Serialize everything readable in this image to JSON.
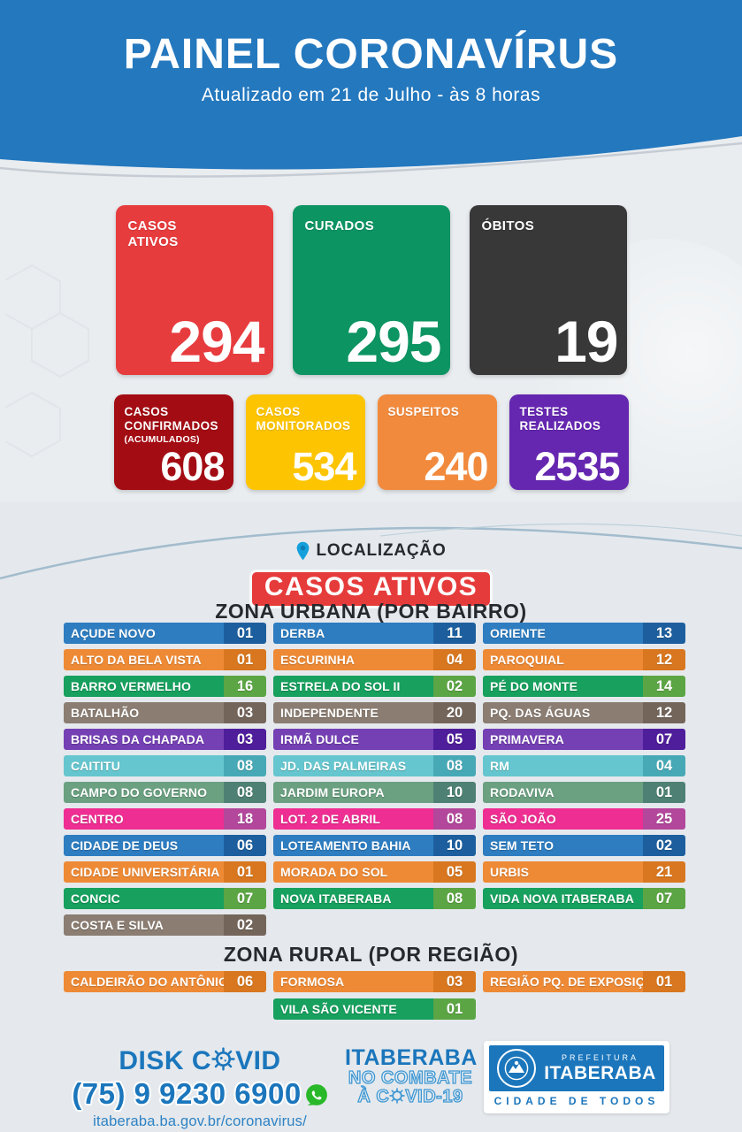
{
  "header": {
    "title": "PAINEL CORONAVÍRUS",
    "subtitle": "Atualizado em 21 de Julho - às 8 horas",
    "banner_color": "#2478be"
  },
  "cards": {
    "row1": [
      {
        "id": "casos-ativos",
        "label_lines": [
          "CASOS",
          "ATIVOS"
        ],
        "value": "294",
        "bg": "#e73c3e"
      },
      {
        "id": "curados",
        "label_lines": [
          "CURADOS"
        ],
        "value": "295",
        "bg": "#0c9462"
      },
      {
        "id": "obitos",
        "label_lines": [
          "ÓBITOS"
        ],
        "value": "19",
        "bg": "#383838"
      }
    ],
    "row2": [
      {
        "id": "casos-confirmados",
        "label_lines": [
          "CASOS",
          "CONFIRMADOS"
        ],
        "sublabel": "(ACUMULADOS)",
        "value": "608",
        "bg": "#a30c13"
      },
      {
        "id": "casos-monitorados",
        "label_lines": [
          "CASOS",
          "MONITORADOS"
        ],
        "value": "534",
        "bg": "#fdc402"
      },
      {
        "id": "suspeitos",
        "label_lines": [
          "SUSPEITOS"
        ],
        "value": "240",
        "bg": "#f18a3d"
      },
      {
        "id": "testes-realizados",
        "label_lines": [
          "TESTES",
          "REALIZADOS"
        ],
        "value": "2535",
        "bg": "#6527b0"
      }
    ]
  },
  "location": {
    "label": "LOCALIZAÇÃO",
    "badge": "CASOS ATIVOS",
    "badge_bg": "#e63b3b",
    "urban_title": "ZONA URBANA (POR BAIRRO)",
    "rural_title": "ZONA RURAL (POR REGIÃO)"
  },
  "row_themes": {
    "blue": {
      "bar": "#2e7dc1",
      "num": "#1d5f9e"
    },
    "orange": {
      "bar": "#ee8a35",
      "num": "#d8771f"
    },
    "green": {
      "bar": "#17a05e",
      "num": "#5ca544"
    },
    "taupe": {
      "bar": "#8b7d72",
      "num": "#74655a"
    },
    "purple": {
      "bar": "#7440b4",
      "num": "#4f1e9b"
    },
    "teal": {
      "bar": "#66c6cf",
      "num": "#47a9b6"
    },
    "sage": {
      "bar": "#6ba081",
      "num": "#4e8173"
    },
    "pink": {
      "bar": "#ee2e92",
      "num": "#b2479b"
    }
  },
  "urban_columns": [
    [
      {
        "name": "AÇUDE NOVO",
        "value": "01",
        "theme": "blue"
      },
      {
        "name": "ALTO DA BELA VISTA",
        "value": "01",
        "theme": "orange"
      },
      {
        "name": "BARRO VERMELHO",
        "value": "16",
        "theme": "green"
      },
      {
        "name": "BATALHÃO",
        "value": "03",
        "theme": "taupe"
      },
      {
        "name": "BRISAS DA CHAPADA",
        "value": "03",
        "theme": "purple"
      },
      {
        "name": "CAITITU",
        "value": "08",
        "theme": "teal"
      },
      {
        "name": "CAMPO DO GOVERNO",
        "value": "08",
        "theme": "sage"
      },
      {
        "name": "CENTRO",
        "value": "18",
        "theme": "pink"
      },
      {
        "name": "CIDADE DE DEUS",
        "value": "06",
        "theme": "blue"
      },
      {
        "name": "CIDADE UNIVERSITÁRIA",
        "value": "01",
        "theme": "orange"
      },
      {
        "name": "CONCIC",
        "value": "07",
        "theme": "green"
      },
      {
        "name": "COSTA E SILVA",
        "value": "02",
        "theme": "taupe"
      }
    ],
    [
      {
        "name": "DERBA",
        "value": "11",
        "theme": "blue"
      },
      {
        "name": "ESCURINHA",
        "value": "04",
        "theme": "orange"
      },
      {
        "name": "ESTRELA DO SOL II",
        "value": "02",
        "theme": "green"
      },
      {
        "name": "INDEPENDENTE",
        "value": "20",
        "theme": "taupe"
      },
      {
        "name": "IRMÃ DULCE",
        "value": "05",
        "theme": "purple"
      },
      {
        "name": "JD. DAS PALMEIRAS",
        "value": "08",
        "theme": "teal"
      },
      {
        "name": "JARDIM EUROPA",
        "value": "10",
        "theme": "sage"
      },
      {
        "name": "LOT. 2 DE ABRIL",
        "value": "08",
        "theme": "pink"
      },
      {
        "name": "LOTEAMENTO BAHIA",
        "value": "10",
        "theme": "blue"
      },
      {
        "name": "MORADA DO SOL",
        "value": "05",
        "theme": "orange"
      },
      {
        "name": "NOVA ITABERABA",
        "value": "08",
        "theme": "green"
      }
    ],
    [
      {
        "name": "ORIENTE",
        "value": "13",
        "theme": "blue"
      },
      {
        "name": "PAROQUIAL",
        "value": "12",
        "theme": "orange"
      },
      {
        "name": "PÉ DO MONTE",
        "value": "14",
        "theme": "green"
      },
      {
        "name": "PQ. DAS ÁGUAS",
        "value": "12",
        "theme": "taupe"
      },
      {
        "name": "PRIMAVERA",
        "value": "07",
        "theme": "purple"
      },
      {
        "name": "RM",
        "value": "04",
        "theme": "teal"
      },
      {
        "name": "RODAVIVA",
        "value": "01",
        "theme": "sage"
      },
      {
        "name": "SÃO JOÃO",
        "value": "25",
        "theme": "pink"
      },
      {
        "name": "SEM TETO",
        "value": "02",
        "theme": "blue"
      },
      {
        "name": "URBIS",
        "value": "21",
        "theme": "orange"
      },
      {
        "name": "VIDA NOVA ITABERABA",
        "value": "07",
        "theme": "green"
      }
    ]
  ],
  "rural": {
    "row1": [
      {
        "name": "CALDEIRÃO DO ANTÔNIO",
        "value": "06",
        "theme": "orange"
      },
      {
        "name": "FORMOSA",
        "value": "03",
        "theme": "orange"
      },
      {
        "name": "REGIÃO PQ. DE EXPOSIÇÃO",
        "value": "01",
        "theme": "orange"
      }
    ],
    "row2": [
      {
        "name": "VILA SÃO VICENTE",
        "value": "01",
        "theme": "green",
        "column": 2
      }
    ]
  },
  "footer": {
    "disk": {
      "pre": "DISK C",
      "post": "VID",
      "phone": "(75) 9 9230 6900",
      "url": "itaberaba.ba.gov.br/coronavirus/"
    },
    "campaign": {
      "line1": "ITABERABA",
      "line2": "NO COMBATE",
      "line3_pre": "À C",
      "line3_post": "VID-19"
    },
    "logo": {
      "top": "PREFEITURA",
      "name": "ITABERABA",
      "bottom": "CIDADE DE TODOS"
    },
    "accent_blue": "#1b76bc",
    "whatsapp_green": "#29b829"
  },
  "chart_data": [
    {
      "type": "bar",
      "title": "PAINEL CORONAVÍRUS - Atualizado em 21 de Julho - às 8 horas",
      "categories": [
        "CASOS ATIVOS",
        "CURADOS",
        "ÓBITOS",
        "CASOS CONFIRMADOS (ACUMULADOS)",
        "CASOS MONITORADOS",
        "SUSPEITOS",
        "TESTES REALIZADOS"
      ],
      "values": [
        294,
        295,
        19,
        608,
        534,
        240,
        2535
      ]
    },
    {
      "type": "table",
      "title": "CASOS ATIVOS - ZONA URBANA (POR BAIRRO)",
      "categories": [
        "AÇUDE NOVO",
        "ALTO DA BELA VISTA",
        "BARRO VERMELHO",
        "BATALHÃO",
        "BRISAS DA CHAPADA",
        "CAITITU",
        "CAMPO DO GOVERNO",
        "CENTRO",
        "CIDADE DE DEUS",
        "CIDADE UNIVERSITÁRIA",
        "CONCIC",
        "COSTA E SILVA",
        "DERBA",
        "ESCURINHA",
        "ESTRELA DO SOL II",
        "INDEPENDENTE",
        "IRMÃ DULCE",
        "JD. DAS PALMEIRAS",
        "JARDIM EUROPA",
        "LOT. 2 DE ABRIL",
        "LOTEAMENTO BAHIA",
        "MORADA DO SOL",
        "NOVA ITABERABA",
        "ORIENTE",
        "PAROQUIAL",
        "PÉ DO MONTE",
        "PQ. DAS ÁGUAS",
        "PRIMAVERA",
        "RM",
        "RODAVIVA",
        "SÃO JOÃO",
        "SEM TETO",
        "URBIS",
        "VIDA NOVA ITABERABA"
      ],
      "values": [
        1,
        1,
        16,
        3,
        3,
        8,
        8,
        18,
        6,
        1,
        7,
        2,
        11,
        4,
        2,
        20,
        5,
        8,
        10,
        8,
        10,
        5,
        8,
        13,
        12,
        14,
        12,
        7,
        4,
        1,
        25,
        2,
        21,
        7
      ]
    },
    {
      "type": "table",
      "title": "CASOS ATIVOS - ZONA RURAL (POR REGIÃO)",
      "categories": [
        "CALDEIRÃO DO ANTÔNIO",
        "FORMOSA",
        "REGIÃO PQ. DE EXPOSIÇÃO",
        "VILA SÃO VICENTE"
      ],
      "values": [
        6,
        3,
        1,
        1
      ]
    }
  ]
}
